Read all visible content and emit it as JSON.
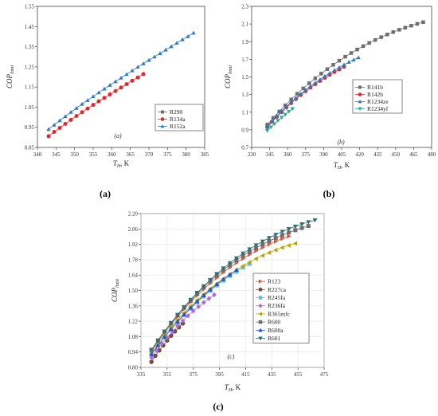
{
  "chart_data": [
    {
      "id": "a",
      "type": "scatter",
      "panel_label": "(a)",
      "caption": "(a)",
      "ylabel_main": "COP",
      "ylabel_sub": "limit",
      "xlabel_main": "T",
      "xlabel_sub": "H",
      "xlabel_unit": ", K",
      "xlim": [
        340,
        385
      ],
      "ylim": [
        0.85,
        1.55
      ],
      "xticks": [
        340,
        345,
        350,
        355,
        360,
        365,
        370,
        375,
        380,
        385
      ],
      "yticks": [
        0.85,
        0.95,
        1.05,
        1.15,
        1.25,
        1.35,
        1.45,
        1.55
      ],
      "ytick_labels": [
        "0.85",
        "0.95",
        "1.05",
        "1.15",
        "1.25",
        "1.35",
        "1.45",
        "1.55"
      ],
      "legend_position": "bottom-right",
      "series": [
        {
          "name": "R290",
          "color": "#6e6e6e",
          "marker": "square",
          "x": [],
          "y": []
        },
        {
          "name": "R134a",
          "color": "#e8232a",
          "marker": "circle",
          "x": [
            343,
            344.5,
            346,
            347.5,
            349,
            350.5,
            352,
            353.5,
            355,
            356.5,
            358,
            359.5,
            361,
            362.5,
            364,
            365.5,
            367,
            368.5
          ],
          "y": [
            0.906,
            0.927,
            0.947,
            0.967,
            0.987,
            1.006,
            1.025,
            1.043,
            1.061,
            1.079,
            1.096,
            1.113,
            1.13,
            1.147,
            1.164,
            1.181,
            1.197,
            1.214
          ]
        },
        {
          "name": "R152a",
          "color": "#2b79c8",
          "marker": "triangle",
          "x": [
            343,
            344.5,
            346,
            347.5,
            349,
            350.5,
            352,
            353.5,
            355,
            356.5,
            358,
            359.5,
            361,
            362.5,
            364,
            365.5,
            367,
            368.5,
            370,
            371.5,
            373,
            374.5,
            376,
            377.5,
            379,
            380.5,
            382
          ],
          "y": [
            0.94,
            0.962,
            0.983,
            1.004,
            1.025,
            1.045,
            1.065,
            1.084,
            1.103,
            1.122,
            1.141,
            1.159,
            1.177,
            1.195,
            1.213,
            1.231,
            1.249,
            1.266,
            1.283,
            1.3,
            1.317,
            1.334,
            1.351,
            1.368,
            1.385,
            1.401,
            1.418
          ]
        }
      ]
    },
    {
      "id": "b",
      "type": "scatter",
      "panel_label": "(b)",
      "caption": "(b)",
      "ylabel_main": "COP",
      "ylabel_sub": "limit",
      "xlabel_main": "T",
      "xlabel_sub": "H",
      "xlabel_unit": ", K",
      "xlim": [
        330,
        480
      ],
      "ylim": [
        0.7,
        2.3
      ],
      "xticks": [
        330,
        345,
        360,
        375,
        390,
        405,
        420,
        435,
        450,
        465,
        480
      ],
      "yticks": [
        0.7,
        0.9,
        1.1,
        1.3,
        1.5,
        1.7,
        1.9,
        2.1,
        2.3
      ],
      "ytick_labels": [
        "0.7",
        "0.9",
        "1.1",
        "1.3",
        "1.5",
        "1.7",
        "1.9",
        "2.1",
        "2.3"
      ],
      "legend_position": "right",
      "series": [
        {
          "name": "R141b",
          "color": "#6e6e6e",
          "marker": "square",
          "x": [
            343,
            348,
            353,
            358,
            363,
            368,
            373,
            378,
            383,
            388,
            393,
            398,
            403,
            408,
            413,
            418,
            423,
            428,
            433,
            438,
            443,
            448,
            453,
            458,
            463,
            468,
            473
          ],
          "y": [
            0.96,
            1.035,
            1.108,
            1.178,
            1.245,
            1.309,
            1.37,
            1.428,
            1.484,
            1.537,
            1.588,
            1.637,
            1.684,
            1.729,
            1.771,
            1.811,
            1.849,
            1.885,
            1.919,
            1.951,
            1.981,
            2.009,
            2.035,
            2.059,
            2.081,
            2.102,
            2.121
          ]
        },
        {
          "name": "R142b",
          "color": "#e8232a",
          "marker": "circle",
          "x": [
            343,
            347,
            351,
            355,
            359,
            363,
            367,
            371,
            375,
            379,
            383,
            387,
            391,
            395,
            399,
            403,
            407
          ],
          "y": [
            0.93,
            0.99,
            1.047,
            1.101,
            1.153,
            1.203,
            1.25,
            1.295,
            1.338,
            1.379,
            1.418,
            1.455,
            1.49,
            1.524,
            1.556,
            1.586,
            1.615
          ]
        },
        {
          "name": "R1234ze",
          "color": "#2b79c8",
          "marker": "triangle",
          "x": [
            343,
            347,
            351,
            355,
            359,
            363,
            367,
            371,
            375,
            379,
            383,
            387,
            391,
            395,
            399,
            403,
            407,
            411,
            415,
            419
          ],
          "y": [
            0.94,
            1.0,
            1.057,
            1.112,
            1.164,
            1.214,
            1.262,
            1.308,
            1.352,
            1.394,
            1.434,
            1.472,
            1.508,
            1.543,
            1.576,
            1.608,
            1.638,
            1.667,
            1.694,
            1.72
          ]
        },
        {
          "name": "R1234yf",
          "color": "#1fae8f",
          "marker": "invtriangle",
          "x": [
            343,
            346,
            349,
            352,
            355,
            358,
            361,
            364
          ],
          "y": [
            0.89,
            0.93,
            0.968,
            1.005,
            1.04,
            1.074,
            1.107,
            1.138
          ]
        }
      ]
    },
    {
      "id": "c",
      "type": "scatter",
      "panel_label": "(c)",
      "caption": "(c)",
      "ylabel_main": "COP",
      "ylabel_sub": "limit",
      "xlabel_main": "T",
      "xlabel_sub": "H",
      "xlabel_unit": ", K",
      "xlim": [
        335,
        475
      ],
      "ylim": [
        0.8,
        2.2
      ],
      "xticks": [
        335,
        355,
        375,
        395,
        415,
        435,
        455,
        475
      ],
      "yticks": [
        0.8,
        0.94,
        1.08,
        1.22,
        1.36,
        1.5,
        1.64,
        1.78,
        1.92,
        2.06,
        2.2
      ],
      "ytick_labels": [
        "0.80",
        "0.94",
        "1.08",
        "1.22",
        "1.36",
        "1.50",
        "1.64",
        "1.78",
        "1.92",
        "2.06",
        "2.20"
      ],
      "legend_position": "right",
      "series": [
        {
          "name": "R123",
          "color": "#e0523a",
          "marker": "righttriangle",
          "x": [
            343,
            348,
            353,
            358,
            363,
            368,
            373,
            378,
            383,
            388,
            393,
            398,
            403,
            408,
            413,
            418,
            423,
            428,
            433,
            438,
            443,
            448
          ],
          "y": [
            0.95,
            1.035,
            1.115,
            1.19,
            1.262,
            1.33,
            1.394,
            1.455,
            1.512,
            1.566,
            1.617,
            1.665,
            1.71,
            1.752,
            1.791,
            1.828,
            1.862,
            1.893,
            1.922,
            1.948,
            1.972,
            1.994
          ]
        },
        {
          "name": "R227ca",
          "color": "#7b4b3a",
          "marker": "circle",
          "x": [
            343,
            346,
            349,
            352,
            355,
            358,
            361,
            364,
            367
          ],
          "y": [
            0.85,
            0.905,
            0.955,
            1.0,
            1.045,
            1.088,
            1.128,
            1.165,
            1.2
          ]
        },
        {
          "name": "R245fa",
          "color": "#5cc1e0",
          "marker": "square",
          "x": [
            343,
            348,
            353,
            358,
            363,
            368,
            373,
            378,
            383,
            388,
            393,
            398,
            403,
            408,
            413,
            418
          ],
          "y": [
            0.92,
            1.0,
            1.075,
            1.145,
            1.212,
            1.275,
            1.335,
            1.392,
            1.446,
            1.497,
            1.545,
            1.59,
            1.632,
            1.671,
            1.708,
            1.742
          ]
        },
        {
          "name": "R236fa",
          "color": "#b06ad8",
          "marker": "diamond",
          "x": [
            343,
            347,
            351,
            355,
            359,
            363,
            367,
            371,
            375,
            379,
            383,
            387,
            391
          ],
          "y": [
            0.89,
            0.955,
            1.015,
            1.072,
            1.126,
            1.177,
            1.225,
            1.27,
            1.313,
            1.353,
            1.391,
            1.427,
            1.461
          ]
        },
        {
          "name": "R365mfc",
          "color": "#b5a800",
          "marker": "lefttriangle",
          "x": [
            343,
            348,
            353,
            358,
            363,
            368,
            373,
            378,
            383,
            388,
            393,
            398,
            403,
            408,
            413,
            418,
            423,
            428,
            433,
            438,
            443,
            448,
            453
          ],
          "y": [
            0.94,
            1.02,
            1.095,
            1.166,
            1.233,
            1.296,
            1.356,
            1.413,
            1.466,
            1.516,
            1.563,
            1.607,
            1.648,
            1.687,
            1.723,
            1.757,
            1.788,
            1.817,
            1.844,
            1.868,
            1.89,
            1.91,
            1.928
          ]
        },
        {
          "name": "R600",
          "color": "#6e6e6e",
          "marker": "square",
          "x": [
            343,
            348,
            353,
            358,
            363,
            368,
            373,
            378,
            383,
            388,
            393,
            398,
            403,
            408,
            413,
            418,
            423,
            428,
            433,
            438,
            443,
            448,
            453,
            458,
            463
          ],
          "y": [
            0.96,
            1.045,
            1.126,
            1.202,
            1.275,
            1.344,
            1.409,
            1.471,
            1.53,
            1.586,
            1.638,
            1.687,
            1.733,
            1.776,
            1.816,
            1.853,
            1.888,
            1.92,
            1.95,
            1.978,
            2.003,
            2.027,
            2.049,
            2.069,
            2.087
          ]
        },
        {
          "name": "R600a",
          "color": "#2b4fd8",
          "marker": "triangle",
          "x": [
            343,
            348,
            353,
            358,
            363,
            368,
            373,
            378,
            383,
            388,
            393,
            398,
            403,
            408
          ],
          "y": [
            0.92,
            1.0,
            1.076,
            1.148,
            1.216,
            1.281,
            1.342,
            1.4,
            1.455,
            1.507,
            1.556,
            1.602,
            1.645,
            1.686
          ]
        },
        {
          "name": "R601",
          "color": "#2f6f6f",
          "marker": "invtriangle",
          "x": [
            343,
            348,
            353,
            358,
            363,
            368,
            373,
            378,
            383,
            388,
            393,
            398,
            403,
            408,
            413,
            418,
            423,
            428,
            433,
            438,
            443,
            448,
            453,
            458,
            463,
            468
          ],
          "y": [
            0.96,
            1.046,
            1.128,
            1.206,
            1.28,
            1.35,
            1.417,
            1.48,
            1.54,
            1.597,
            1.651,
            1.702,
            1.75,
            1.795,
            1.837,
            1.876,
            1.913,
            1.947,
            1.979,
            2.008,
            2.035,
            2.06,
            2.083,
            2.104,
            2.123,
            2.14
          ]
        }
      ]
    }
  ]
}
